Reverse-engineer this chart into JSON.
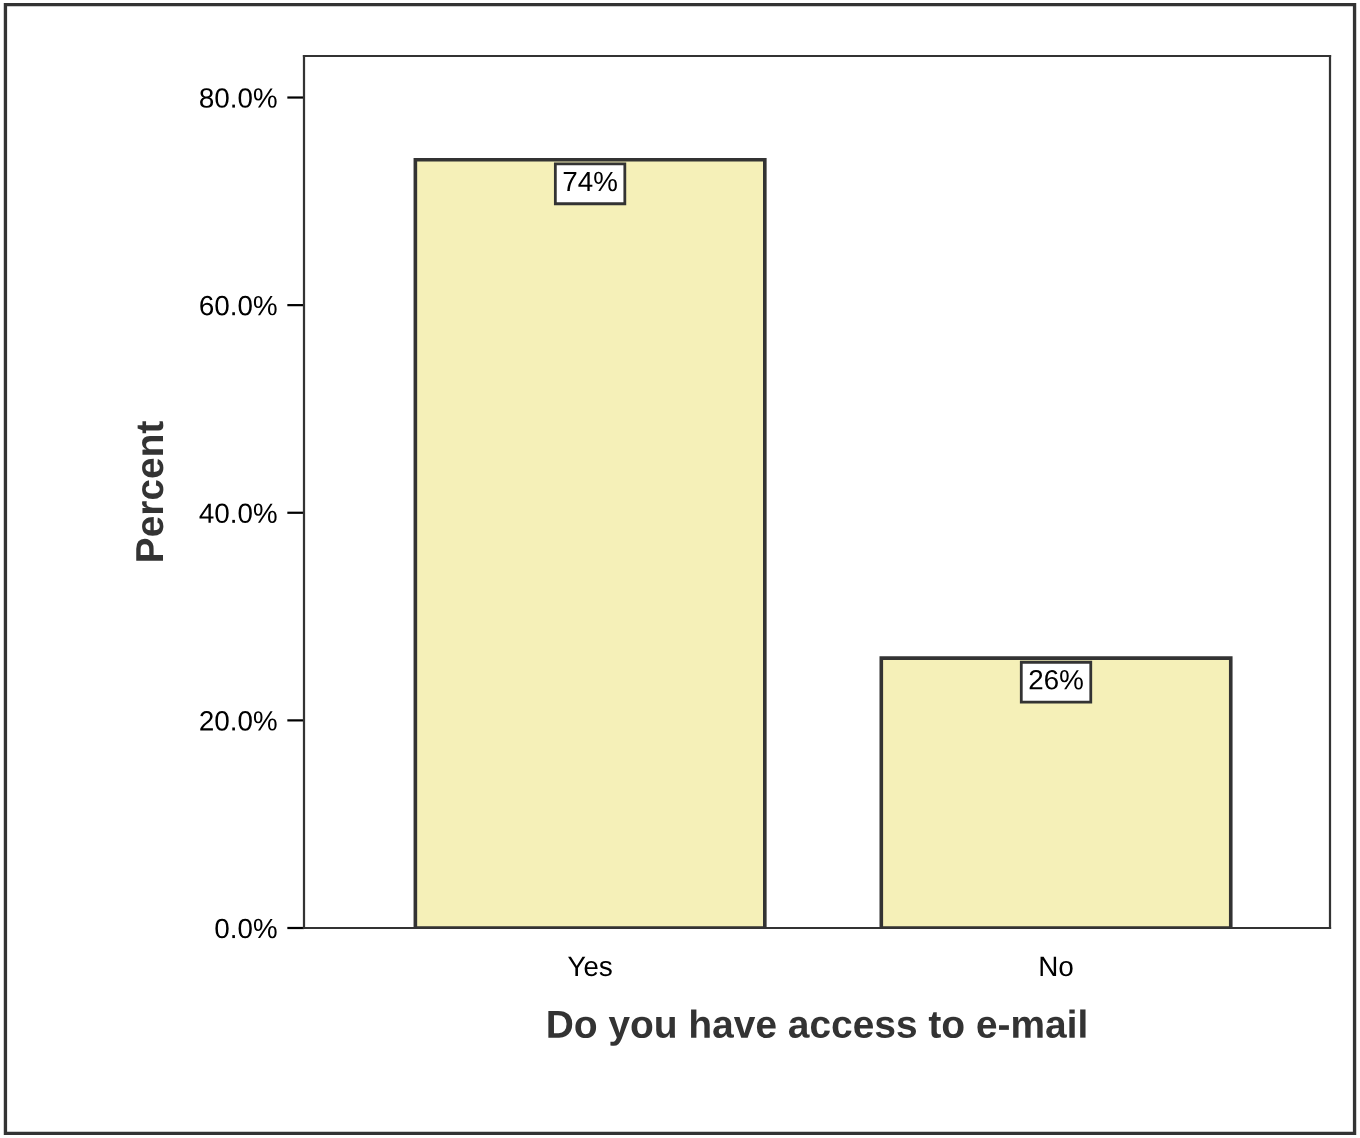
{
  "chart_data": {
    "type": "bar",
    "xlabel": "Do you have access to e-mail",
    "ylabel": "Percent",
    "categories": [
      "Yes",
      "No"
    ],
    "values": [
      74,
      26
    ],
    "value_labels": [
      "74%",
      "26%"
    ],
    "color": "#f5f0b8",
    "ylim": [
      0,
      84
    ],
    "yticks": [
      {
        "value": 0,
        "label": "0.0%"
      },
      {
        "value": 20,
        "label": "20.0%"
      },
      {
        "value": 40,
        "label": "40.0%"
      },
      {
        "value": 60,
        "label": "60.0%"
      },
      {
        "value": 80,
        "label": "80.0%"
      }
    ],
    "grid": false,
    "legend": false
  }
}
